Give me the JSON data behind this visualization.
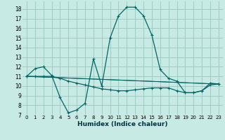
{
  "title": "",
  "xlabel": "Humidex (Indice chaleur)",
  "background_color": "#c8eae4",
  "grid_color": "#a0ccc4",
  "line_color": "#006666",
  "xlim": [
    -0.5,
    23.5
  ],
  "ylim": [
    7,
    18.8
  ],
  "xticks": [
    0,
    1,
    2,
    3,
    4,
    5,
    6,
    7,
    8,
    9,
    10,
    11,
    12,
    13,
    14,
    15,
    16,
    17,
    18,
    19,
    20,
    21,
    22,
    23
  ],
  "yticks": [
    7,
    8,
    9,
    10,
    11,
    12,
    13,
    14,
    15,
    16,
    17,
    18
  ],
  "line1_x": [
    0,
    1,
    2,
    3,
    4,
    5,
    6,
    7,
    8,
    9,
    10,
    11,
    12,
    13,
    14,
    15,
    16,
    17,
    18,
    19,
    20,
    21,
    22,
    23
  ],
  "line1_y": [
    11.0,
    11.8,
    12.0,
    11.1,
    8.8,
    7.2,
    7.5,
    8.2,
    12.8,
    10.0,
    15.0,
    17.3,
    18.2,
    18.2,
    17.3,
    15.3,
    11.7,
    10.8,
    10.5,
    9.3,
    9.3,
    9.5,
    10.3,
    10.2
  ],
  "line2_x": [
    0,
    1,
    2,
    3,
    4,
    5,
    6,
    7,
    8,
    9,
    10,
    11,
    12,
    13,
    14,
    15,
    16,
    17,
    18,
    19,
    20,
    21,
    22,
    23
  ],
  "line2_y": [
    11.0,
    11.0,
    11.0,
    11.0,
    10.8,
    10.5,
    10.3,
    10.1,
    9.9,
    9.7,
    9.6,
    9.5,
    9.5,
    9.6,
    9.7,
    9.8,
    9.8,
    9.8,
    9.5,
    9.3,
    9.3,
    9.5,
    10.1,
    10.2
  ],
  "line3_x": [
    0,
    23
  ],
  "line3_y": [
    11.0,
    10.2
  ],
  "line4_x": [
    0,
    23
  ],
  "line4_y": [
    11.0,
    10.2
  ]
}
